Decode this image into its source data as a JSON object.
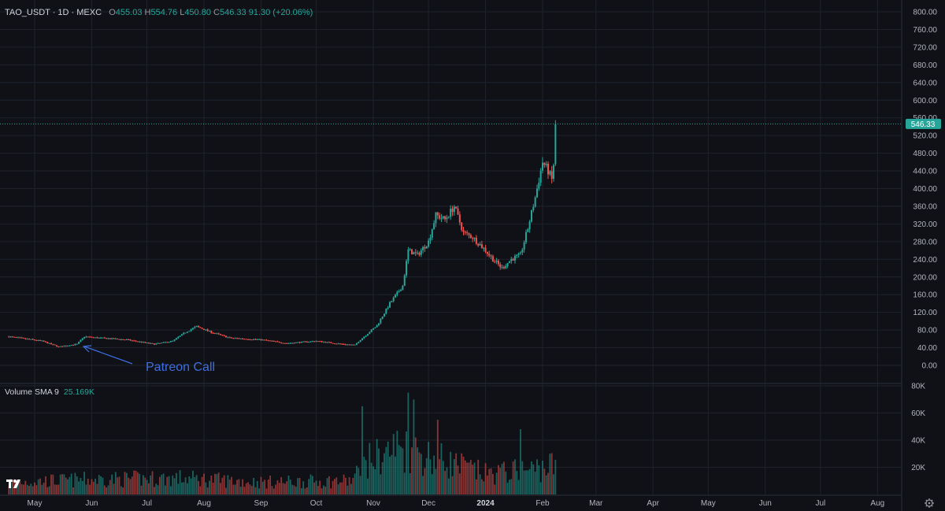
{
  "header": {
    "symbol": "TAO_USDT · 1D · MEXC",
    "o_label": "O",
    "o_value": "455.03",
    "h_label": "H",
    "h_value": "554.76",
    "l_label": "L",
    "l_value": "450.80",
    "c_label": "C",
    "c_value": "546.33",
    "change": "91.30 (+20.06%)"
  },
  "volume_header": {
    "label": "Volume SMA 9",
    "value": "25.169K"
  },
  "last_price_label": "546.33",
  "annotation": {
    "text": "Patreon Call"
  },
  "colors": {
    "background": "#0f1116",
    "grid": "#1f222b",
    "up": "#26a69a",
    "down": "#ef5350",
    "annotation": "#3d6fe3",
    "price_tag": "#26a69a"
  },
  "icons": {
    "logo": "tradingview-logo-icon",
    "settings": "gear-icon"
  },
  "chart_data": {
    "type": "candlestick",
    "price_axis": {
      "ticks": [
        "800.00",
        "760.00",
        "720.00",
        "680.00",
        "640.00",
        "600.00",
        "560.00",
        "520.00",
        "480.00",
        "440.00",
        "400.00",
        "360.00",
        "320.00",
        "280.00",
        "240.00",
        "200.00",
        "160.00",
        "120.00",
        "80.00",
        "40.00",
        "0.00"
      ],
      "range": [
        0,
        800
      ]
    },
    "volume_axis": {
      "ticks": [
        "80K",
        "60K",
        "40K",
        "20K"
      ],
      "range": [
        0,
        80000
      ]
    },
    "time_axis": {
      "ticks": [
        "May",
        "Jun",
        "Jul",
        "Aug",
        "Sep",
        "Oct",
        "Nov",
        "Dec",
        "2024",
        "Feb",
        "Mar",
        "Apr",
        "May",
        "Jun",
        "Jul",
        "Aug"
      ]
    },
    "last_close": 546.33,
    "price_anchors": [
      [
        "2023-04-17",
        65
      ],
      [
        "2023-05-05",
        55
      ],
      [
        "2023-05-14",
        42
      ],
      [
        "2023-05-24",
        48
      ],
      [
        "2023-05-28",
        65
      ],
      [
        "2023-06-05",
        62
      ],
      [
        "2023-06-20",
        58
      ],
      [
        "2023-07-05",
        48
      ],
      [
        "2023-07-15",
        55
      ],
      [
        "2023-07-22",
        75
      ],
      [
        "2023-07-28",
        88
      ],
      [
        "2023-08-05",
        75
      ],
      [
        "2023-08-15",
        62
      ],
      [
        "2023-09-01",
        58
      ],
      [
        "2023-09-15",
        50
      ],
      [
        "2023-10-01",
        55
      ],
      [
        "2023-10-15",
        48
      ],
      [
        "2023-10-22",
        46
      ],
      [
        "2023-10-25",
        58
      ],
      [
        "2023-11-03",
        90
      ],
      [
        "2023-11-10",
        140
      ],
      [
        "2023-11-17",
        180
      ],
      [
        "2023-11-20",
        260
      ],
      [
        "2023-11-25",
        250
      ],
      [
        "2023-12-01",
        280
      ],
      [
        "2023-12-05",
        340
      ],
      [
        "2023-12-10",
        330
      ],
      [
        "2023-12-15",
        360
      ],
      [
        "2023-12-20",
        300
      ],
      [
        "2023-12-25",
        290
      ],
      [
        "2024-01-01",
        260
      ],
      [
        "2024-01-05",
        240
      ],
      [
        "2024-01-10",
        220
      ],
      [
        "2024-01-15",
        240
      ],
      [
        "2024-01-20",
        250
      ],
      [
        "2024-01-24",
        310
      ],
      [
        "2024-01-28",
        380
      ],
      [
        "2024-02-01",
        460
      ],
      [
        "2024-02-04",
        440
      ],
      [
        "2024-02-06",
        420
      ],
      [
        "2024-02-07",
        455
      ],
      [
        "2024-02-08",
        546.33
      ]
    ],
    "volume_anchors": [
      [
        "2023-04-17",
        9000
      ],
      [
        "2023-06-01",
        11000
      ],
      [
        "2023-07-20",
        12000
      ],
      [
        "2023-09-01",
        9000
      ],
      [
        "2023-10-20",
        10000
      ],
      [
        "2023-10-30",
        25000
      ],
      [
        "2023-11-15",
        35000
      ],
      [
        "2023-12-01",
        28000
      ],
      [
        "2024-01-01",
        15000
      ],
      [
        "2024-01-25",
        18000
      ],
      [
        "2024-02-08",
        22000
      ]
    ],
    "volume_spikes": [
      [
        "2023-10-26",
        65000
      ],
      [
        "2023-11-20",
        75000
      ],
      [
        "2023-11-23",
        70000
      ],
      [
        "2023-12-06",
        55000
      ],
      [
        "2024-01-20",
        48000
      ]
    ]
  }
}
